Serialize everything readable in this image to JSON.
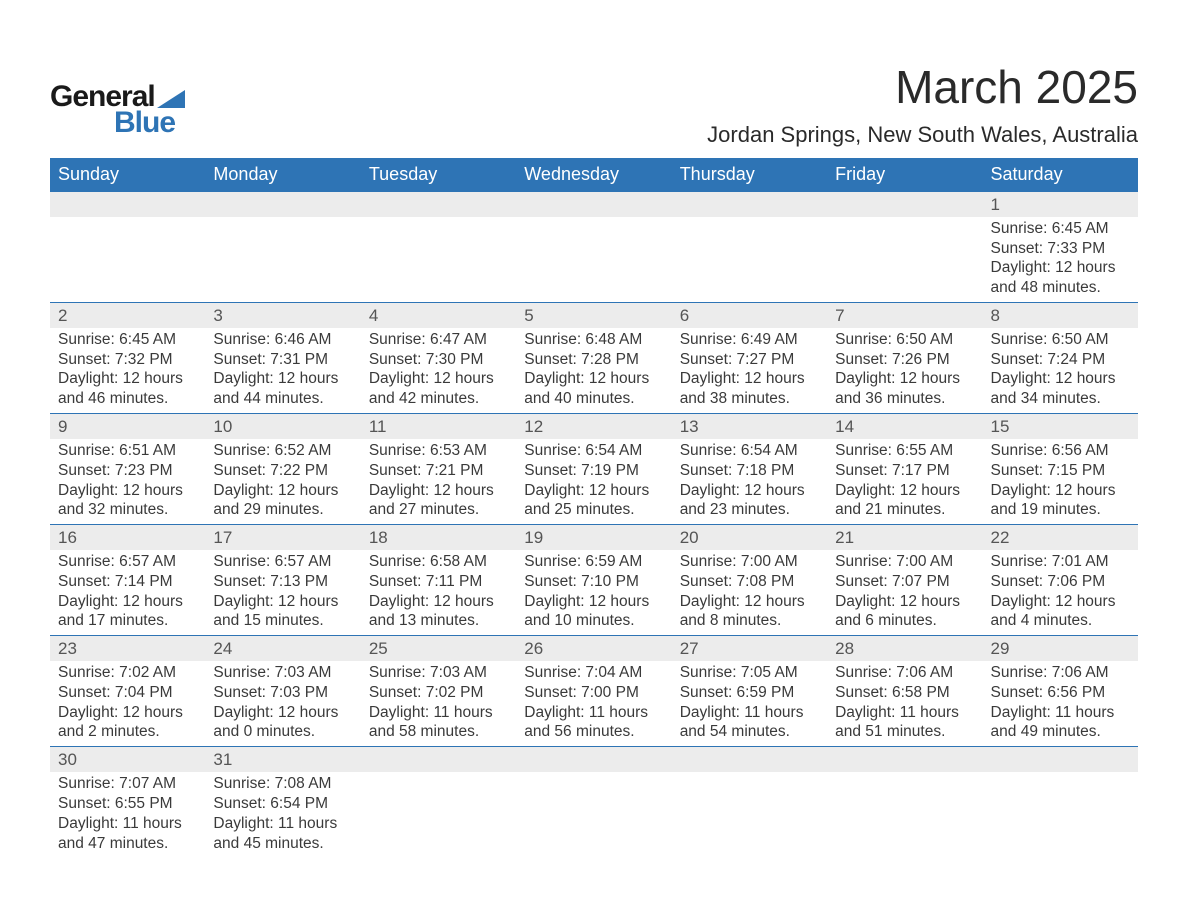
{
  "logo": {
    "text1": "General",
    "text2": "Blue"
  },
  "title": "March 2025",
  "location": "Jordan Springs, New South Wales, Australia",
  "header_bg": "#2e74b5",
  "days": [
    "Sunday",
    "Monday",
    "Tuesday",
    "Wednesday",
    "Thursday",
    "Friday",
    "Saturday"
  ],
  "weeks": [
    {
      "nums": [
        "",
        "",
        "",
        "",
        "",
        "",
        "1"
      ],
      "cells": [
        null,
        null,
        null,
        null,
        null,
        null,
        {
          "sunrise": "Sunrise: 6:45 AM",
          "sunset": "Sunset: 7:33 PM",
          "d1": "Daylight: 12 hours",
          "d2": "and 48 minutes."
        }
      ]
    },
    {
      "nums": [
        "2",
        "3",
        "4",
        "5",
        "6",
        "7",
        "8"
      ],
      "cells": [
        {
          "sunrise": "Sunrise: 6:45 AM",
          "sunset": "Sunset: 7:32 PM",
          "d1": "Daylight: 12 hours",
          "d2": "and 46 minutes."
        },
        {
          "sunrise": "Sunrise: 6:46 AM",
          "sunset": "Sunset: 7:31 PM",
          "d1": "Daylight: 12 hours",
          "d2": "and 44 minutes."
        },
        {
          "sunrise": "Sunrise: 6:47 AM",
          "sunset": "Sunset: 7:30 PM",
          "d1": "Daylight: 12 hours",
          "d2": "and 42 minutes."
        },
        {
          "sunrise": "Sunrise: 6:48 AM",
          "sunset": "Sunset: 7:28 PM",
          "d1": "Daylight: 12 hours",
          "d2": "and 40 minutes."
        },
        {
          "sunrise": "Sunrise: 6:49 AM",
          "sunset": "Sunset: 7:27 PM",
          "d1": "Daylight: 12 hours",
          "d2": "and 38 minutes."
        },
        {
          "sunrise": "Sunrise: 6:50 AM",
          "sunset": "Sunset: 7:26 PM",
          "d1": "Daylight: 12 hours",
          "d2": "and 36 minutes."
        },
        {
          "sunrise": "Sunrise: 6:50 AM",
          "sunset": "Sunset: 7:24 PM",
          "d1": "Daylight: 12 hours",
          "d2": "and 34 minutes."
        }
      ]
    },
    {
      "nums": [
        "9",
        "10",
        "11",
        "12",
        "13",
        "14",
        "15"
      ],
      "cells": [
        {
          "sunrise": "Sunrise: 6:51 AM",
          "sunset": "Sunset: 7:23 PM",
          "d1": "Daylight: 12 hours",
          "d2": "and 32 minutes."
        },
        {
          "sunrise": "Sunrise: 6:52 AM",
          "sunset": "Sunset: 7:22 PM",
          "d1": "Daylight: 12 hours",
          "d2": "and 29 minutes."
        },
        {
          "sunrise": "Sunrise: 6:53 AM",
          "sunset": "Sunset: 7:21 PM",
          "d1": "Daylight: 12 hours",
          "d2": "and 27 minutes."
        },
        {
          "sunrise": "Sunrise: 6:54 AM",
          "sunset": "Sunset: 7:19 PM",
          "d1": "Daylight: 12 hours",
          "d2": "and 25 minutes."
        },
        {
          "sunrise": "Sunrise: 6:54 AM",
          "sunset": "Sunset: 7:18 PM",
          "d1": "Daylight: 12 hours",
          "d2": "and 23 minutes."
        },
        {
          "sunrise": "Sunrise: 6:55 AM",
          "sunset": "Sunset: 7:17 PM",
          "d1": "Daylight: 12 hours",
          "d2": "and 21 minutes."
        },
        {
          "sunrise": "Sunrise: 6:56 AM",
          "sunset": "Sunset: 7:15 PM",
          "d1": "Daylight: 12 hours",
          "d2": "and 19 minutes."
        }
      ]
    },
    {
      "nums": [
        "16",
        "17",
        "18",
        "19",
        "20",
        "21",
        "22"
      ],
      "cells": [
        {
          "sunrise": "Sunrise: 6:57 AM",
          "sunset": "Sunset: 7:14 PM",
          "d1": "Daylight: 12 hours",
          "d2": "and 17 minutes."
        },
        {
          "sunrise": "Sunrise: 6:57 AM",
          "sunset": "Sunset: 7:13 PM",
          "d1": "Daylight: 12 hours",
          "d2": "and 15 minutes."
        },
        {
          "sunrise": "Sunrise: 6:58 AM",
          "sunset": "Sunset: 7:11 PM",
          "d1": "Daylight: 12 hours",
          "d2": "and 13 minutes."
        },
        {
          "sunrise": "Sunrise: 6:59 AM",
          "sunset": "Sunset: 7:10 PM",
          "d1": "Daylight: 12 hours",
          "d2": "and 10 minutes."
        },
        {
          "sunrise": "Sunrise: 7:00 AM",
          "sunset": "Sunset: 7:08 PM",
          "d1": "Daylight: 12 hours",
          "d2": "and 8 minutes."
        },
        {
          "sunrise": "Sunrise: 7:00 AM",
          "sunset": "Sunset: 7:07 PM",
          "d1": "Daylight: 12 hours",
          "d2": "and 6 minutes."
        },
        {
          "sunrise": "Sunrise: 7:01 AM",
          "sunset": "Sunset: 7:06 PM",
          "d1": "Daylight: 12 hours",
          "d2": "and 4 minutes."
        }
      ]
    },
    {
      "nums": [
        "23",
        "24",
        "25",
        "26",
        "27",
        "28",
        "29"
      ],
      "cells": [
        {
          "sunrise": "Sunrise: 7:02 AM",
          "sunset": "Sunset: 7:04 PM",
          "d1": "Daylight: 12 hours",
          "d2": "and 2 minutes."
        },
        {
          "sunrise": "Sunrise: 7:03 AM",
          "sunset": "Sunset: 7:03 PM",
          "d1": "Daylight: 12 hours",
          "d2": "and 0 minutes."
        },
        {
          "sunrise": "Sunrise: 7:03 AM",
          "sunset": "Sunset: 7:02 PM",
          "d1": "Daylight: 11 hours",
          "d2": "and 58 minutes."
        },
        {
          "sunrise": "Sunrise: 7:04 AM",
          "sunset": "Sunset: 7:00 PM",
          "d1": "Daylight: 11 hours",
          "d2": "and 56 minutes."
        },
        {
          "sunrise": "Sunrise: 7:05 AM",
          "sunset": "Sunset: 6:59 PM",
          "d1": "Daylight: 11 hours",
          "d2": "and 54 minutes."
        },
        {
          "sunrise": "Sunrise: 7:06 AM",
          "sunset": "Sunset: 6:58 PM",
          "d1": "Daylight: 11 hours",
          "d2": "and 51 minutes."
        },
        {
          "sunrise": "Sunrise: 7:06 AM",
          "sunset": "Sunset: 6:56 PM",
          "d1": "Daylight: 11 hours",
          "d2": "and 49 minutes."
        }
      ]
    },
    {
      "nums": [
        "30",
        "31",
        "",
        "",
        "",
        "",
        ""
      ],
      "cells": [
        {
          "sunrise": "Sunrise: 7:07 AM",
          "sunset": "Sunset: 6:55 PM",
          "d1": "Daylight: 11 hours",
          "d2": "and 47 minutes."
        },
        {
          "sunrise": "Sunrise: 7:08 AM",
          "sunset": "Sunset: 6:54 PM",
          "d1": "Daylight: 11 hours",
          "d2": "and 45 minutes."
        },
        null,
        null,
        null,
        null,
        null
      ]
    }
  ]
}
